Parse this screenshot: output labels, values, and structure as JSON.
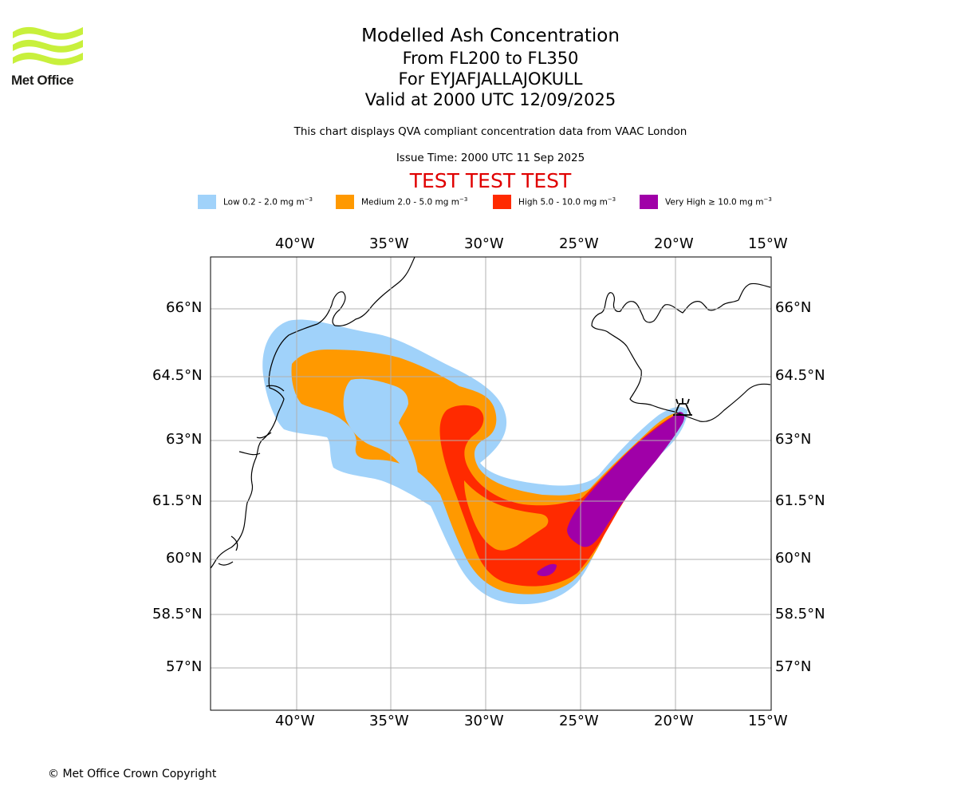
{
  "logo": {
    "name": "Met Office",
    "color": "#c8f03c"
  },
  "titles": {
    "main": "Modelled Ash Concentration",
    "levels": "From FL200 to FL350",
    "volcano": "For EYJAFJALLAJOKULL",
    "valid": "Valid at 2000 UTC 12/09/2025"
  },
  "subtitle": "This chart displays QVA compliant concentration data from VAAC London",
  "issue_time": "Issue Time: 2000 UTC 11 Sep 2025",
  "test_banner": "TEST TEST TEST",
  "legend": [
    {
      "label": "Low 0.2 - 2.0 mg m",
      "unit_exp": "−3",
      "color": "#a0d2fa"
    },
    {
      "label": "Medium 2.0 - 5.0 mg m",
      "unit_exp": "−3",
      "color": "#ff9900"
    },
    {
      "label": "High 5.0 - 10.0 mg m",
      "unit_exp": "−3",
      "color": "#ff2a00"
    },
    {
      "label": "Very High  ≥  10.0 mg m",
      "unit_exp": "−3",
      "color": "#a000a8"
    }
  ],
  "axes": {
    "lon_labels": [
      "40°W",
      "35°W",
      "30°W",
      "25°W",
      "20°W",
      "15°W"
    ],
    "lat_labels": [
      "66°N",
      "64.5°N",
      "63°N",
      "61.5°N",
      "60°N",
      "58.5°N",
      "57°N"
    ]
  },
  "map": {
    "volcano_marker": "volcano-icon",
    "grid_color": "#b0b0b0"
  },
  "copyright": "© Met Office Crown Copyright"
}
